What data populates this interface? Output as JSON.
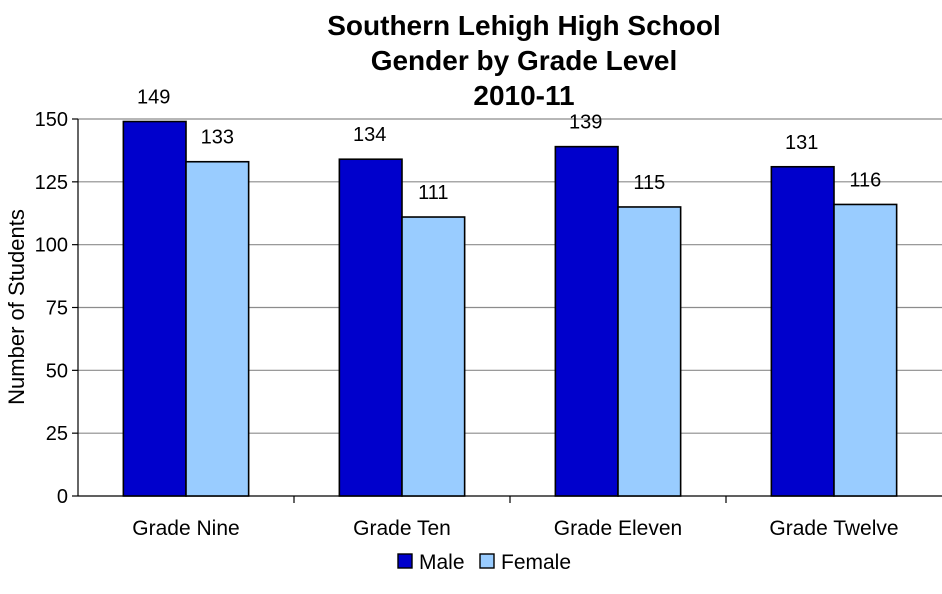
{
  "chart_data": {
    "type": "bar",
    "title_lines": [
      "Southern Lehigh High School",
      "Gender by Grade Level",
      "2010-11"
    ],
    "ylabel": "Number of Students",
    "xlabel": "",
    "categories": [
      "Grade Nine",
      "Grade Ten",
      "Grade Eleven",
      "Grade Twelve"
    ],
    "series": [
      {
        "name": "Male",
        "values": [
          149,
          134,
          139,
          131
        ],
        "color": "#0000CC"
      },
      {
        "name": "Female",
        "values": [
          133,
          111,
          115,
          116
        ],
        "color": "#99CCFF"
      }
    ],
    "ylim": [
      0,
      150
    ],
    "yticks": [
      "0",
      "25",
      "50",
      "75",
      "100",
      "125",
      "150"
    ],
    "data_labels": true,
    "grid": true,
    "legend_position": "bottom"
  }
}
